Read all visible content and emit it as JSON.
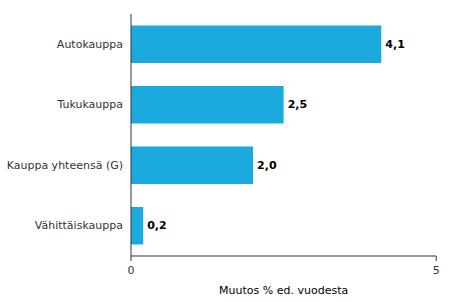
{
  "chart_data": {
    "type": "bar",
    "orientation": "horizontal",
    "categories": [
      "Vähittäiskauppa",
      "Kauppa yhteensä (G)",
      "Tukukauppa",
      "Autokauppa"
    ],
    "values": [
      0.2,
      2.0,
      2.5,
      4.1
    ],
    "value_labels": [
      "0,2",
      "2,0",
      "2,5",
      "4,1"
    ],
    "data_labels": true,
    "color": "#1aaade",
    "xlabel": "Muutos % ed. vuodesta",
    "xlim": [
      0,
      5
    ],
    "xticks": [
      0,
      5
    ],
    "grid": false
  }
}
